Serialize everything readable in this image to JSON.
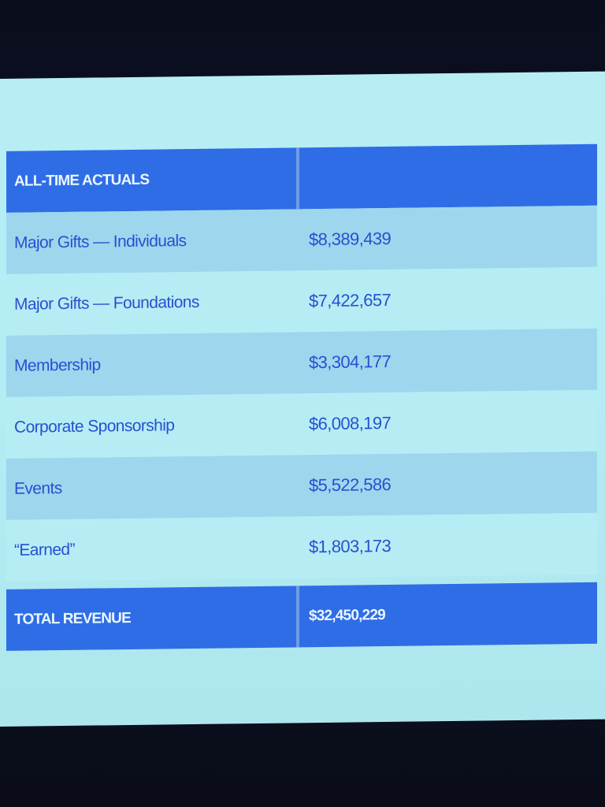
{
  "chart_data": {
    "type": "table",
    "header": [
      "ALL-TIME ACTUALS",
      ""
    ],
    "rows": [
      {
        "label": "Major Gifts — Individuals",
        "value": "$8,389,439"
      },
      {
        "label": "Major Gifts — Foundations",
        "value": "$7,422,657"
      },
      {
        "label": "Membership",
        "value": "$3,304,177"
      },
      {
        "label": "Corporate Sponsorship",
        "value": "$6,008,197"
      },
      {
        "label": "Events",
        "value": "$5,522,586"
      },
      {
        "label": "“Earned”",
        "value": "$1,803,173"
      }
    ],
    "total": {
      "label": "TOTAL REVENUE",
      "value": "$32,450,229"
    }
  },
  "colors": {
    "header_blue": "#2f6de6",
    "band_blue": "#9ed6ee",
    "slide_bg": "#b6edf4",
    "text_blue": "#2a4fd0"
  }
}
